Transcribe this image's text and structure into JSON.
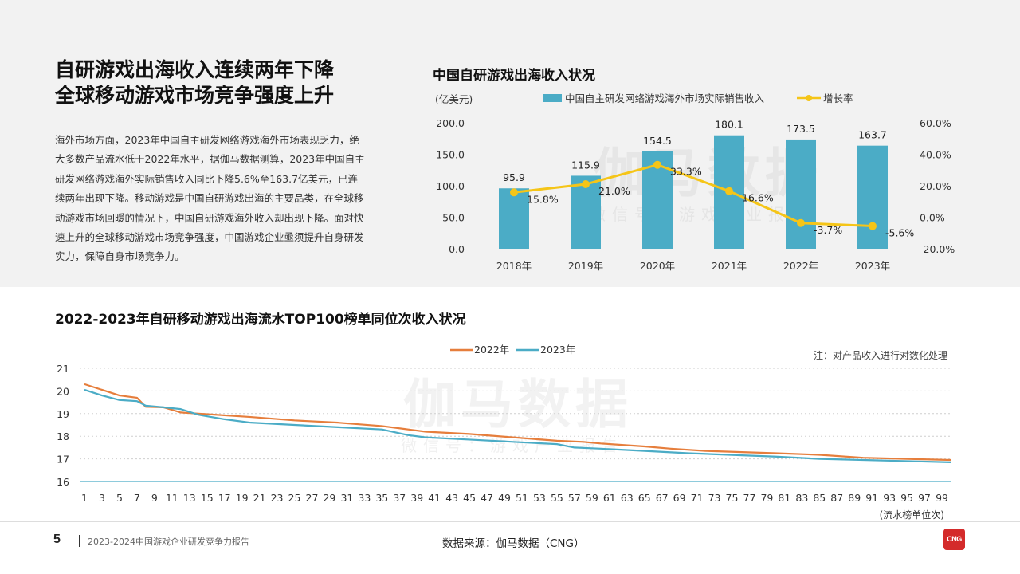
{
  "headline": {
    "line1": "自研游戏出海收入连续两年下降",
    "line2": "全球移动游戏市场竞争强度上升"
  },
  "body_text": "海外市场方面，2023年中国自主研发网络游戏海外市场表现乏力，绝大多数产品流水低于2022年水平，据伽马数据测算，2023年中国自主研发网络游戏海外实际销售收入同比下降5.6%至163.7亿美元，已连续两年出现下降。移动游戏是中国自研游戏出海的主要品类，在全球移动游戏市场回暖的情况下，中国自研游戏海外收入却出现下降。面对快速上升的全球移动游戏市场竞争强度，中国游戏企业亟须提升自身研发实力，保障自身市场竞争力。",
  "watermark": {
    "main": "伽马数据",
    "sub": "微信号：游戏产业报告"
  },
  "footer": {
    "page": "5",
    "report_title": "2023-2024中国游戏企业研发竞争力报告",
    "source": "数据来源：伽马数据（CNG）",
    "logo_text": "CNG"
  },
  "colors": {
    "bar": "#4bacc6",
    "growth": "#f5c518",
    "line2022": "#e67e3c",
    "line2023": "#4bacc6",
    "panel": "#f2f2f2"
  },
  "chart_data": [
    {
      "type": "bar",
      "title": "中国自研游戏出海收入状况",
      "unit_label": "(亿美元)",
      "categories": [
        "2018年",
        "2019年",
        "2020年",
        "2021年",
        "2022年",
        "2023年"
      ],
      "series": [
        {
          "name": "中国自主研发网络游戏海外市场实际销售收入",
          "type": "bar",
          "axis": "left",
          "values": [
            95.9,
            115.9,
            154.5,
            180.1,
            173.5,
            163.7
          ],
          "labels": [
            "95.9",
            "115.9",
            "154.5",
            "180.1",
            "173.5",
            "163.7"
          ]
        },
        {
          "name": "增长率",
          "type": "line",
          "axis": "right",
          "values": [
            15.8,
            21.0,
            33.3,
            16.6,
            -3.7,
            -5.6
          ],
          "labels": [
            "15.8%",
            "21.0%",
            "33.3%",
            "16.6%",
            "-3.7%",
            "-5.6%"
          ]
        }
      ],
      "left_axis": {
        "range": [
          0,
          200
        ],
        "ticks": [
          0,
          50,
          100,
          150,
          200
        ],
        "tick_labels": [
          "0.0",
          "50.0",
          "100.0",
          "150.0",
          "200.0"
        ]
      },
      "right_axis": {
        "range": [
          -20,
          60
        ],
        "ticks": [
          -20,
          0,
          20,
          40,
          60
        ],
        "tick_labels": [
          "-20.0%",
          "0.0%",
          "20.0%",
          "40.0%",
          "60.0%"
        ]
      },
      "legend": "top-center",
      "grid": false
    },
    {
      "type": "line",
      "title": "2022-2023年自研移动游戏出海流水TOP100榜单同位次收入状况",
      "note": "注：对产品收入进行对数化处理",
      "xlabel": "(流水榜单位次)",
      "x_range": [
        1,
        100
      ],
      "x_ticks": [
        1,
        3,
        5,
        7,
        9,
        11,
        13,
        15,
        17,
        19,
        21,
        23,
        25,
        27,
        29,
        31,
        33,
        35,
        37,
        39,
        41,
        43,
        45,
        47,
        49,
        51,
        53,
        55,
        57,
        59,
        61,
        63,
        65,
        67,
        69,
        71,
        73,
        75,
        77,
        79,
        81,
        83,
        85,
        87,
        89,
        91,
        93,
        95,
        97,
        99
      ],
      "x_tick_labels": [
        "1",
        "3",
        "5",
        "7",
        "9",
        "11",
        "13",
        "15",
        "17",
        "19",
        "21",
        "23",
        "25",
        "27",
        "29",
        "31",
        "33",
        "35",
        "37",
        "39",
        "41",
        "43",
        "45",
        "47",
        "49",
        "51",
        "53",
        "55",
        "57",
        "59",
        "61",
        "63",
        "65",
        "67",
        "69",
        "71",
        "73",
        "75",
        "77",
        "79",
        "81",
        "83",
        "85",
        "87",
        "89",
        "91",
        "93",
        "95",
        "97",
        "99"
      ],
      "y_range": [
        16,
        21
      ],
      "y_ticks": [
        16,
        17,
        18,
        19,
        20,
        21
      ],
      "y_tick_labels": [
        "16",
        "17",
        "18",
        "19",
        "20",
        "21"
      ],
      "legend": "top-center",
      "grid": true,
      "series": [
        {
          "name": "2022年",
          "x": [
            1,
            3,
            5,
            7,
            8,
            10,
            12,
            14,
            20,
            25,
            30,
            35,
            38,
            40,
            45,
            50,
            55,
            58,
            60,
            65,
            68,
            72,
            80,
            85,
            90,
            95,
            100
          ],
          "values": [
            20.3,
            20.05,
            19.8,
            19.7,
            19.3,
            19.28,
            19.05,
            19.0,
            18.85,
            18.7,
            18.6,
            18.45,
            18.3,
            18.2,
            18.1,
            17.95,
            17.8,
            17.75,
            17.68,
            17.55,
            17.45,
            17.35,
            17.25,
            17.18,
            17.05,
            17.0,
            16.95
          ]
        },
        {
          "name": "2023年",
          "x": [
            1,
            3,
            5,
            7,
            8,
            10,
            12,
            14,
            17,
            20,
            25,
            30,
            35,
            38,
            40,
            45,
            50,
            55,
            57,
            60,
            65,
            70,
            80,
            85,
            90,
            95,
            100
          ],
          "values": [
            20.05,
            19.8,
            19.6,
            19.55,
            19.35,
            19.28,
            19.2,
            18.95,
            18.75,
            18.6,
            18.5,
            18.4,
            18.3,
            18.05,
            17.95,
            17.85,
            17.75,
            17.65,
            17.5,
            17.45,
            17.35,
            17.25,
            17.1,
            17.0,
            16.95,
            16.9,
            16.85
          ]
        }
      ]
    }
  ]
}
